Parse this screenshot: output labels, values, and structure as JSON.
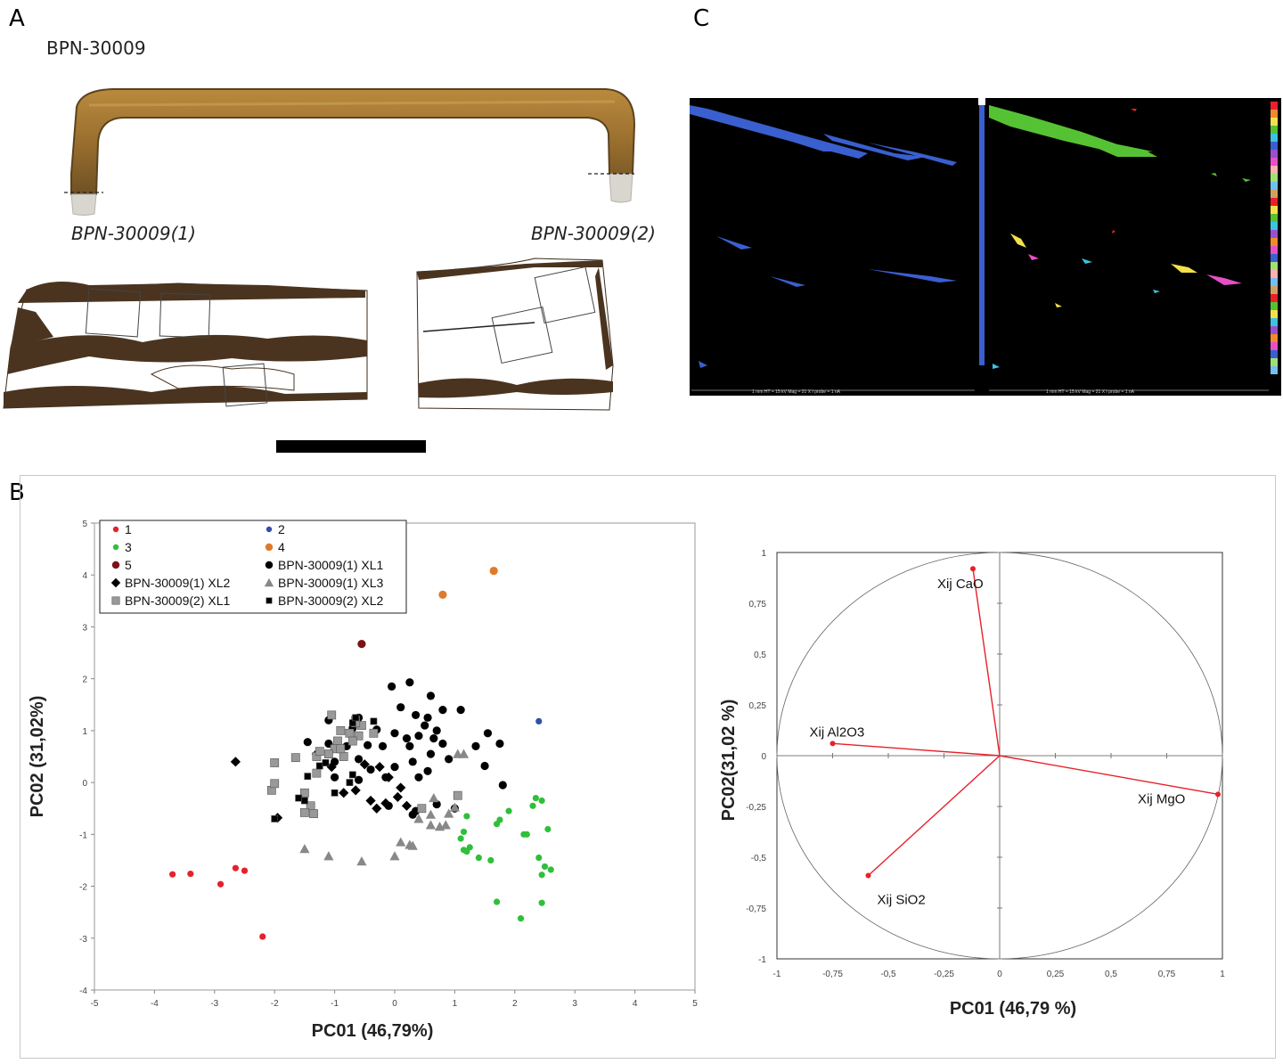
{
  "panels": {
    "a": "A",
    "b": "B",
    "c": "C"
  },
  "panel_a": {
    "sample_id": "BPN-30009",
    "left_label": "BPN-30009(1)",
    "right_label": "BPN-30009(2)"
  },
  "panel_c": {
    "left_footer": "1 mm   HT = 15 kV   Mag = 21 X   I probe = 1 nA",
    "right_footer": "1 mm   HT = 15 kV   Mag = 21 X   I probe = 1 nA",
    "colors": {
      "mg": "#3a5fcf",
      "ca": "#55c234",
      "bg": "#000000"
    }
  },
  "chart_data": [
    {
      "type": "scatter",
      "xlabel": "PC01 (46,79%)",
      "ylabel": "PC02 (31,02%)",
      "xlim": [
        -5,
        5
      ],
      "ylim": [
        -4,
        5
      ],
      "xticks": [
        "-5",
        "-4",
        "-3",
        "-2",
        "-1",
        "0",
        "1",
        "2",
        "3",
        "4",
        "5"
      ],
      "yticks": [
        "-4",
        "-3",
        "-2",
        "-1",
        "0",
        "1",
        "2",
        "3",
        "4",
        "5"
      ],
      "legend_position": "top-left",
      "series": [
        {
          "name": "1",
          "marker": "circle",
          "color": "#e8202a",
          "size": "small",
          "points": [
            [
              -3.7,
              -1.77
            ],
            [
              -3.4,
              -1.76
            ],
            [
              -2.65,
              -1.65
            ],
            [
              -2.5,
              -1.7
            ],
            [
              -2.9,
              -1.96
            ],
            [
              -2.2,
              -2.97
            ]
          ]
        },
        {
          "name": "2",
          "marker": "circle",
          "color": "#3150a7",
          "size": "small",
          "points": [
            [
              2.4,
              1.18
            ]
          ]
        },
        {
          "name": "3",
          "marker": "circle",
          "color": "#2fbf3a",
          "size": "small",
          "points": [
            [
              2.35,
              -0.3
            ],
            [
              2.45,
              -0.35
            ],
            [
              2.3,
              -0.45
            ],
            [
              1.9,
              -0.55
            ],
            [
              1.75,
              -0.72
            ],
            [
              1.2,
              -0.65
            ],
            [
              1.15,
              -0.95
            ],
            [
              1.1,
              -1.08
            ],
            [
              2.55,
              -0.9
            ],
            [
              2.15,
              -1.0
            ],
            [
              1.15,
              -1.3
            ],
            [
              1.25,
              -1.25
            ],
            [
              1.2,
              -1.33
            ],
            [
              1.4,
              -1.45
            ],
            [
              1.6,
              -1.5
            ],
            [
              2.4,
              -1.45
            ],
            [
              2.5,
              -1.62
            ],
            [
              2.6,
              -1.68
            ],
            [
              2.45,
              -1.78
            ],
            [
              1.7,
              -2.3
            ],
            [
              2.45,
              -2.32
            ],
            [
              2.1,
              -2.62
            ],
            [
              2.2,
              -1.0
            ],
            [
              1.7,
              -0.8
            ]
          ]
        },
        {
          "name": "4",
          "marker": "circle",
          "color": "#e07a2b",
          "size": "medium",
          "points": [
            [
              1.65,
              4.08
            ],
            [
              0.8,
              3.62
            ]
          ]
        },
        {
          "name": "5",
          "marker": "circle",
          "color": "#7b1316",
          "size": "medium",
          "points": [
            [
              -0.55,
              2.67
            ]
          ]
        },
        {
          "name": "BPN-30009(1) XL1",
          "marker": "circle",
          "color": "#000000",
          "size": "medium",
          "points": [
            [
              -0.05,
              1.85
            ],
            [
              0.25,
              1.93
            ],
            [
              0.6,
              1.67
            ],
            [
              -0.6,
              1.25
            ],
            [
              0.35,
              1.3
            ],
            [
              0.55,
              1.25
            ],
            [
              0.8,
              1.4
            ],
            [
              1.1,
              1.4
            ],
            [
              0.1,
              1.45
            ],
            [
              0.5,
              1.1
            ],
            [
              0.7,
              1.0
            ],
            [
              -1.1,
              1.2
            ],
            [
              -0.7,
              1.05
            ],
            [
              -0.3,
              1.02
            ],
            [
              0.0,
              0.95
            ],
            [
              0.2,
              0.85
            ],
            [
              0.4,
              0.9
            ],
            [
              0.65,
              0.85
            ],
            [
              0.8,
              0.75
            ],
            [
              1.55,
              0.95
            ],
            [
              1.35,
              0.7
            ],
            [
              1.75,
              0.75
            ],
            [
              -1.45,
              0.78
            ],
            [
              -1.1,
              0.75
            ],
            [
              -0.8,
              0.7
            ],
            [
              -0.45,
              0.72
            ],
            [
              -0.2,
              0.7
            ],
            [
              0.25,
              0.7
            ],
            [
              0.6,
              0.55
            ],
            [
              0.9,
              0.45
            ],
            [
              1.5,
              0.32
            ],
            [
              -1.3,
              0.5
            ],
            [
              -1.0,
              0.4
            ],
            [
              -0.6,
              0.45
            ],
            [
              0.3,
              0.4
            ],
            [
              1.8,
              -0.05
            ],
            [
              -0.6,
              0.05
            ],
            [
              0.0,
              0.3
            ],
            [
              0.55,
              0.22
            ],
            [
              -0.1,
              -0.45
            ],
            [
              0.35,
              -0.55
            ],
            [
              0.3,
              -0.62
            ],
            [
              0.7,
              -0.42
            ],
            [
              1.0,
              -0.5
            ],
            [
              -1.0,
              0.1
            ],
            [
              -0.15,
              0.1
            ],
            [
              0.4,
              0.1
            ],
            [
              -0.4,
              0.25
            ]
          ]
        },
        {
          "name": "BPN-30009(1) XL2",
          "marker": "diamond",
          "color": "#000000",
          "size": "medium",
          "points": [
            [
              -2.65,
              0.4
            ],
            [
              -1.95,
              -0.68
            ],
            [
              -1.3,
              0.55
            ],
            [
              -1.05,
              0.3
            ],
            [
              -0.65,
              -0.15
            ],
            [
              -0.4,
              -0.35
            ],
            [
              -0.25,
              0.3
            ],
            [
              -0.1,
              0.1
            ],
            [
              0.05,
              -0.28
            ],
            [
              0.2,
              -0.45
            ],
            [
              -0.85,
              -0.2
            ],
            [
              -0.15,
              -0.4
            ],
            [
              -0.3,
              -0.5
            ],
            [
              -0.5,
              0.35
            ],
            [
              0.1,
              -0.1
            ]
          ]
        },
        {
          "name": "BPN-30009(1) XL3",
          "marker": "triangle",
          "color": "#888888",
          "size": "medium",
          "points": [
            [
              1.05,
              0.55
            ],
            [
              1.15,
              0.55
            ],
            [
              -1.5,
              -1.28
            ],
            [
              -1.1,
              -1.42
            ],
            [
              -0.55,
              -1.52
            ],
            [
              0.1,
              -1.15
            ],
            [
              0.25,
              -1.2
            ],
            [
              0.3,
              -1.22
            ],
            [
              0.4,
              -0.7
            ],
            [
              0.65,
              -0.3
            ],
            [
              0.6,
              -0.62
            ],
            [
              0.9,
              -0.6
            ],
            [
              0.85,
              -0.82
            ],
            [
              0.6,
              -0.82
            ],
            [
              0.75,
              -0.85
            ],
            [
              0.0,
              -1.42
            ],
            [
              1.0,
              -0.48
            ]
          ]
        },
        {
          "name": "BPN-30009(2) XL1",
          "marker": "square",
          "color": "#999999",
          "size": "medium",
          "points": [
            [
              -0.65,
              1.2
            ],
            [
              -0.55,
              1.1
            ],
            [
              -1.05,
              1.3
            ],
            [
              -0.75,
              0.95
            ],
            [
              -0.9,
              1.0
            ],
            [
              -0.95,
              0.8
            ],
            [
              -0.6,
              0.9
            ],
            [
              -1.3,
              0.5
            ],
            [
              -1.25,
              0.6
            ],
            [
              -1.0,
              0.65
            ],
            [
              -1.1,
              0.55
            ],
            [
              -0.85,
              0.5
            ],
            [
              -1.65,
              0.48
            ],
            [
              -2.0,
              0.38
            ],
            [
              -1.3,
              0.18
            ],
            [
              -1.5,
              -0.2
            ],
            [
              -1.4,
              -0.45
            ],
            [
              -1.5,
              -0.58
            ],
            [
              -2.05,
              -0.15
            ],
            [
              -2.0,
              -0.02
            ],
            [
              -1.35,
              -0.6
            ],
            [
              -0.9,
              0.65
            ],
            [
              -0.35,
              0.95
            ],
            [
              0.45,
              -0.5
            ],
            [
              1.05,
              -0.25
            ],
            [
              -0.7,
              0.8
            ],
            [
              -0.65,
              1.15
            ]
          ]
        },
        {
          "name": "BPN-30009(2) XL2",
          "marker": "square",
          "color": "#000000",
          "size": "small",
          "points": [
            [
              -0.7,
              1.15
            ],
            [
              -0.35,
              1.18
            ],
            [
              -0.65,
              1.25
            ],
            [
              -1.25,
              0.32
            ],
            [
              -1.15,
              0.38
            ],
            [
              -1.45,
              0.12
            ],
            [
              -1.6,
              -0.3
            ],
            [
              -1.0,
              -0.2
            ],
            [
              -0.75,
              0.0
            ],
            [
              -0.7,
              0.15
            ],
            [
              -1.5,
              -0.35
            ],
            [
              -2.0,
              -0.7
            ]
          ]
        }
      ]
    },
    {
      "type": "scatter",
      "subtype": "correlation-circle",
      "xlabel": "PC01 (46,79 %)",
      "ylabel": "PC02(31,02 %)",
      "xlim": [
        -1,
        1
      ],
      "ylim": [
        -1,
        1
      ],
      "xticks": [
        "-1",
        "-0,75",
        "-0,5",
        "-0,25",
        "0",
        "0,25",
        "0,5",
        "0,75",
        "1"
      ],
      "yticks": [
        "-1",
        "-0,75",
        "-0,5",
        "-0,25",
        "0",
        "0,25",
        "0,5",
        "0,75",
        "1"
      ],
      "vector_color": "#e8202a",
      "vectors": [
        {
          "label": "Xij CaO",
          "x": -0.12,
          "y": 0.92
        },
        {
          "label": "Xij Al2O3",
          "x": -0.75,
          "y": 0.06
        },
        {
          "label": "Xij MgO",
          "x": 0.98,
          "y": -0.19
        },
        {
          "label": "Xij SiO2",
          "x": -0.59,
          "y": -0.59
        }
      ]
    }
  ]
}
